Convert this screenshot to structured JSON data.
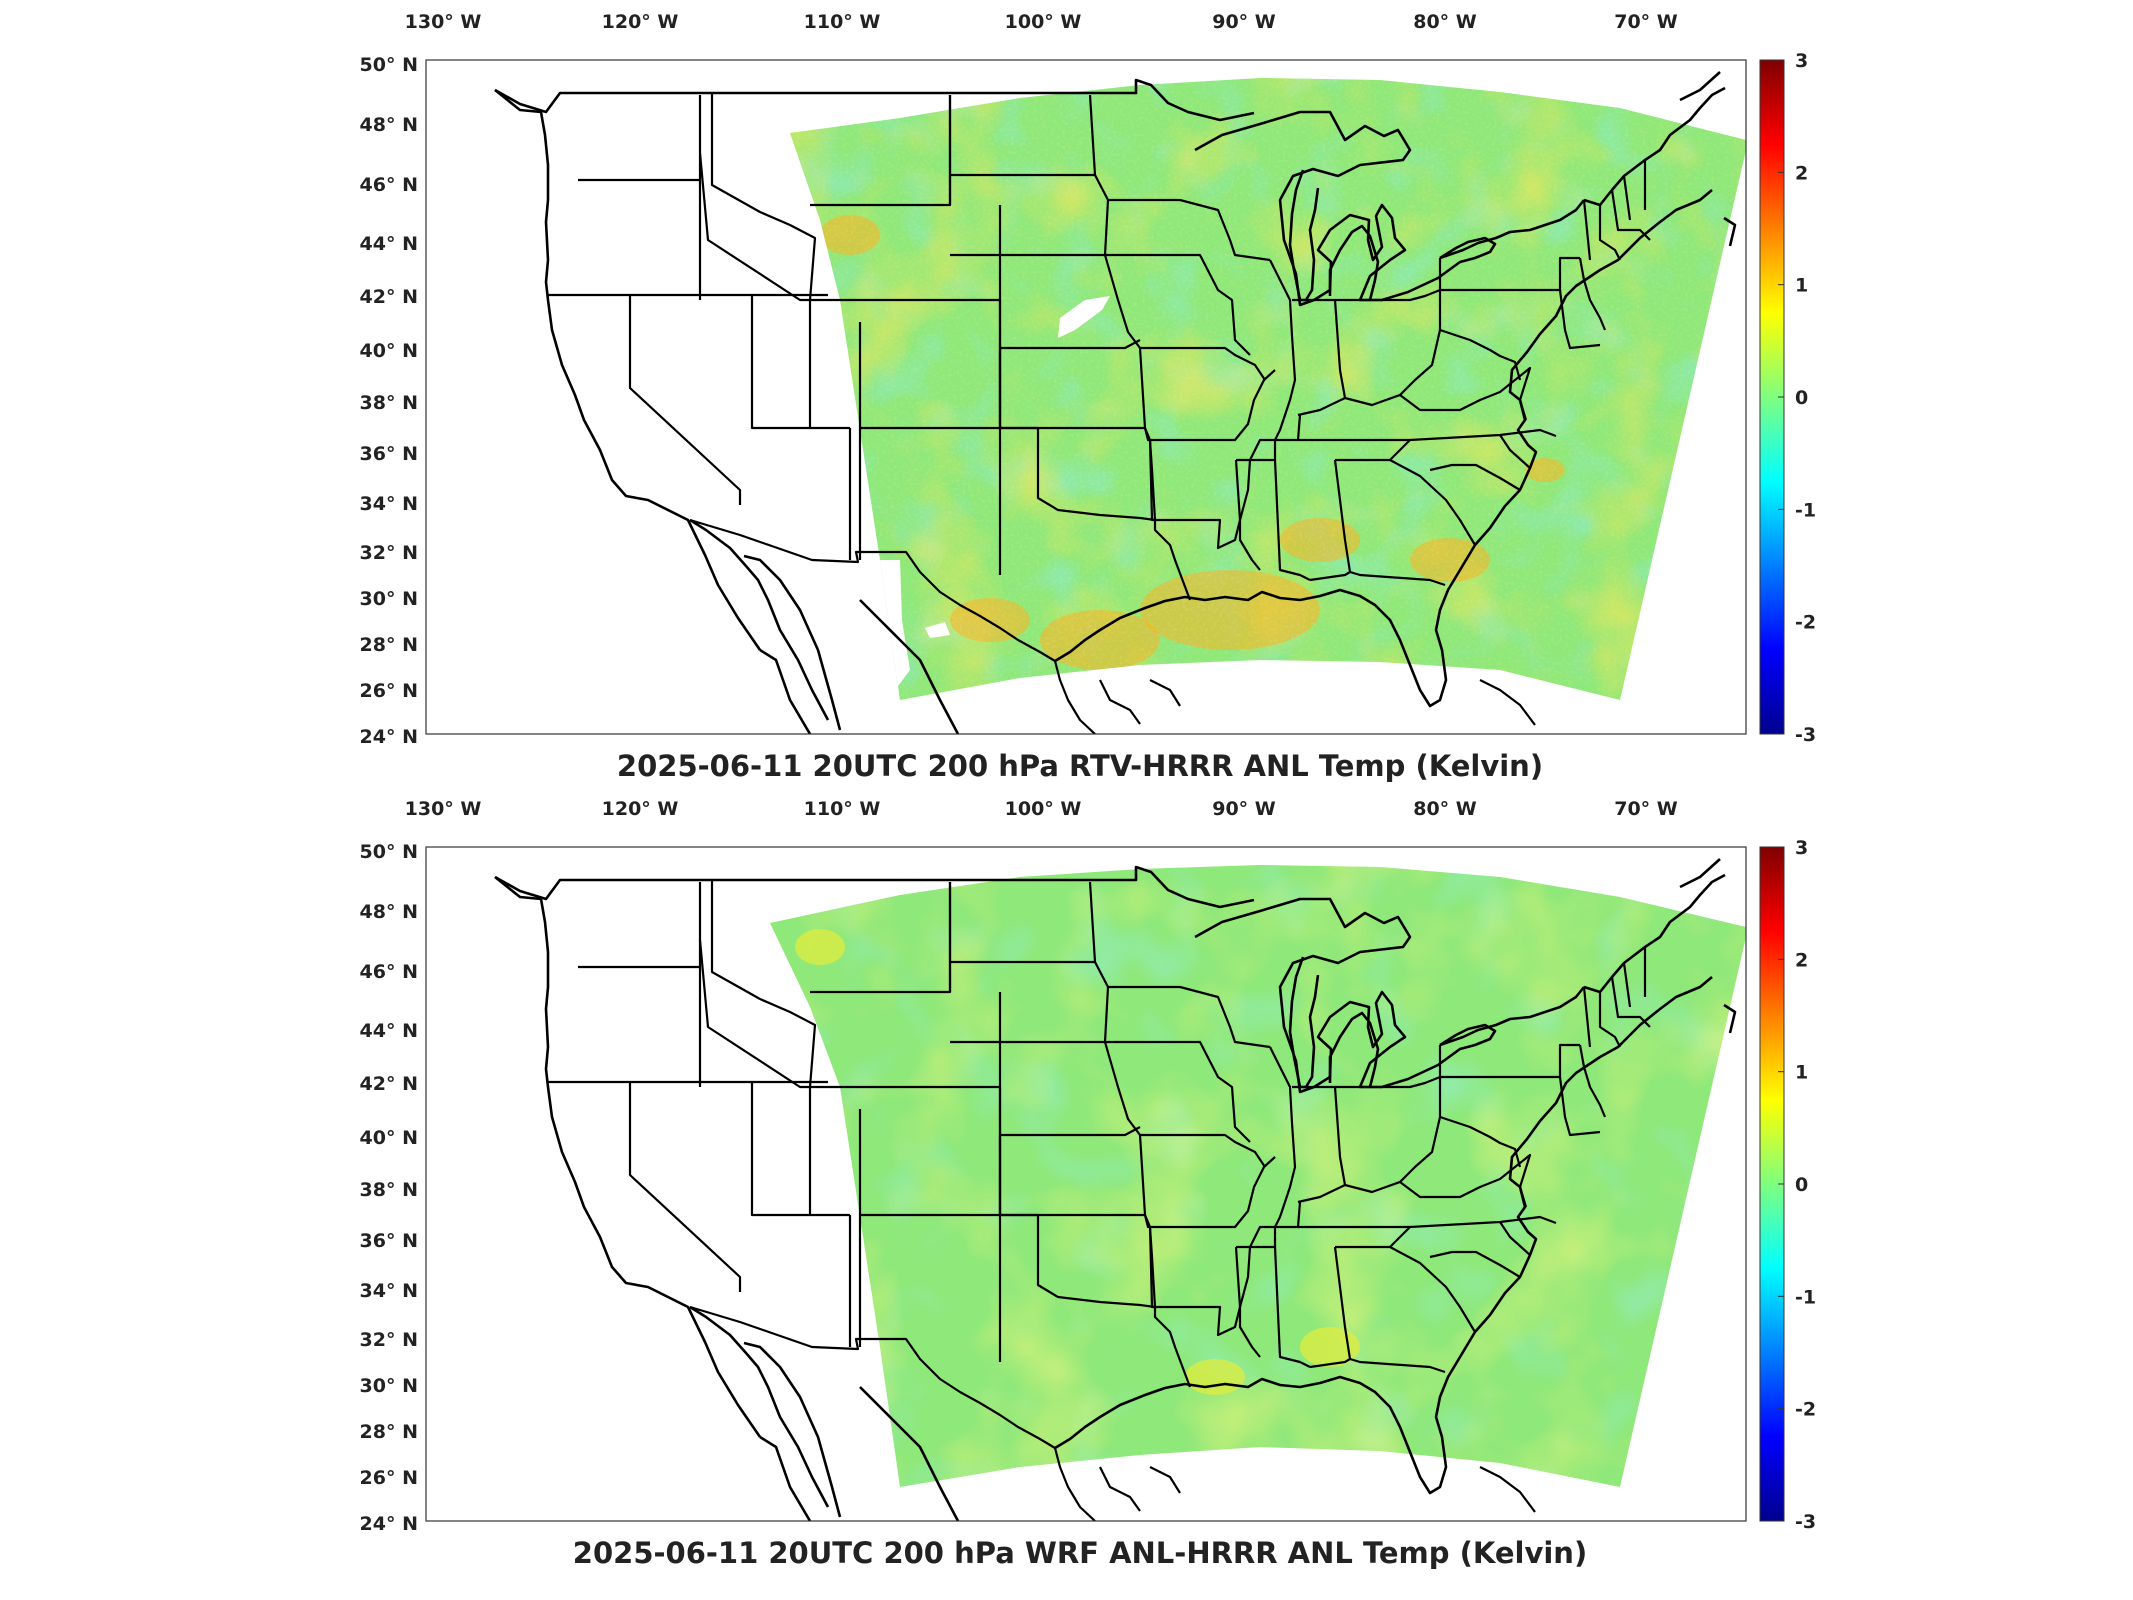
{
  "panels": [
    {
      "title": "2025-06-11 20UTC 200 hPa RTV-HRRR ANL Temp (Kelvin)",
      "variant": "rtv"
    },
    {
      "title": "2025-06-11 20UTC 200 hPa WRF ANL-HRRR ANL Temp (Kelvin)",
      "variant": "wrf"
    }
  ],
  "lon_ticks": [
    "130° W",
    "120° W",
    "110° W",
    "100° W",
    "90° W",
    "80° W",
    "70° W"
  ],
  "lat_ticks": [
    "50° N",
    "48° N",
    "46° N",
    "44° N",
    "42° N",
    "40° N",
    "38° N",
    "36° N",
    "34° N",
    "32° N",
    "30° N",
    "28° N",
    "26° N",
    "24° N"
  ],
  "colorbar": {
    "ticks": [
      "3",
      "2",
      "1",
      "0",
      "-1",
      "-2",
      "-3"
    ],
    "range": [
      -3,
      3
    ],
    "colormap": "jet",
    "colors": [
      "#00008f",
      "#0000ff",
      "#00ffff",
      "#7fff7f",
      "#ffff00",
      "#ff0000",
      "#800000"
    ]
  },
  "field_colors": {
    "cyan": "#3fe0d8",
    "green": "#8fe87a",
    "yellow": "#e6ec3a",
    "orange": "#ffb020"
  }
}
